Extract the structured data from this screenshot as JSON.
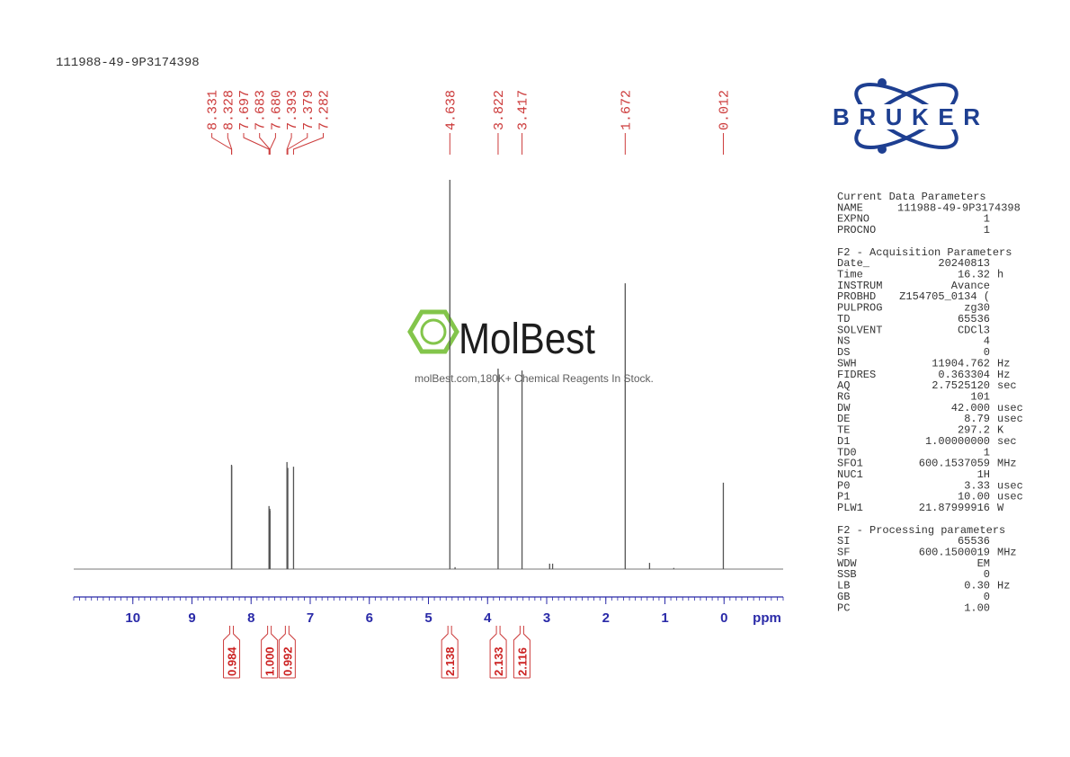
{
  "header": {
    "title": "111988-49-9P3174398"
  },
  "chart_data": {
    "type": "spectrum",
    "xlabel": "ppm",
    "xlim": [
      11,
      -1
    ],
    "xticks": [
      10,
      9,
      8,
      7,
      6,
      5,
      4,
      3,
      2,
      1,
      0
    ],
    "xminor": 0.1,
    "ylim": [
      0,
      100
    ],
    "color": "#555555",
    "x": [
      8.331,
      8.328,
      7.697,
      7.683,
      7.68,
      7.393,
      7.379,
      7.282,
      4.638,
      4.55,
      3.822,
      3.417,
      2.95,
      2.9,
      1.672,
      1.26,
      0.85,
      0.012
    ],
    "values": [
      26.8,
      26.5,
      16.2,
      15.5,
      15,
      27.5,
      26,
      26.3,
      100,
      0.5,
      51.5,
      51,
      1.4,
      1.4,
      73.4,
      1.6,
      0.3,
      22.2
    ],
    "peaks": {
      "values": [
        8.331,
        8.328,
        7.697,
        7.683,
        7.68,
        7.393,
        7.379,
        7.282,
        4.638,
        3.822,
        3.417,
        1.672,
        0.012
      ],
      "value_labels": [
        "8.331",
        "8.328",
        "7.697",
        "7.683",
        "7.680",
        "7.393",
        "7.379",
        "7.282",
        "4.638",
        "3.822",
        "3.417",
        "1.672",
        "0.012"
      ]
    },
    "integrals": {
      "x": [
        8.33,
        7.69,
        7.39,
        4.64,
        3.82,
        3.42
      ],
      "values": [
        0.984,
        1,
        0.992,
        2.138,
        2.133,
        2.116
      ],
      "value_labels": [
        "0.984",
        "1.000",
        "0.992",
        "2.138",
        "2.133",
        "2.116"
      ]
    }
  },
  "logo": "BRUKER",
  "watermark": {
    "brand": "MolBest",
    "tagline": "molBest.com,180K+ Chemical Reagents In Stock."
  },
  "parameters": [
    {
      "title": "Current Data Parameters",
      "rows": [
        [
          "NAME",
          "111988-49-9P3174398"
        ],
        [
          "EXPNO",
          "1"
        ],
        [
          "PROCNO",
          "1"
        ]
      ]
    },
    {
      "title": "F2 - Acquisition Parameters",
      "rows": [
        [
          "Date_",
          "20240813"
        ],
        [
          "Time",
          "16.32",
          "h"
        ],
        [
          "INSTRUM",
          "Avance"
        ],
        [
          "PROBHD",
          "Z154705_0134 ("
        ],
        [
          "PULPROG",
          "zg30"
        ],
        [
          "TD",
          "65536"
        ],
        [
          "SOLVENT",
          "CDCl3"
        ],
        [
          "NS",
          "4"
        ],
        [
          "DS",
          "0"
        ],
        [
          "SWH",
          "11904.762",
          "Hz"
        ],
        [
          "FIDRES",
          "0.363304",
          "Hz"
        ],
        [
          "AQ",
          "2.7525120",
          "sec"
        ],
        [
          "RG",
          "101"
        ],
        [
          "DW",
          "42.000",
          "usec"
        ],
        [
          "DE",
          "8.79",
          "usec"
        ],
        [
          "TE",
          "297.2",
          "K"
        ],
        [
          "D1",
          "1.00000000",
          "sec"
        ],
        [
          "TD0",
          "1"
        ],
        [
          "SFO1",
          "600.1537059",
          "MHz"
        ],
        [
          "NUC1",
          "1H"
        ],
        [
          "P0",
          "3.33",
          "usec"
        ],
        [
          "P1",
          "10.00",
          "usec"
        ],
        [
          "PLW1",
          "21.87999916",
          "W"
        ]
      ]
    },
    {
      "title": "F2 - Processing parameters",
      "rows": [
        [
          "SI",
          "65536"
        ],
        [
          "SF",
          "600.1500019",
          "MHz"
        ],
        [
          "WDW",
          "EM"
        ],
        [
          "SSB",
          "0"
        ],
        [
          "LB",
          "0.30",
          "Hz"
        ],
        [
          "GB",
          "0"
        ],
        [
          "PC",
          "1.00"
        ]
      ]
    }
  ]
}
